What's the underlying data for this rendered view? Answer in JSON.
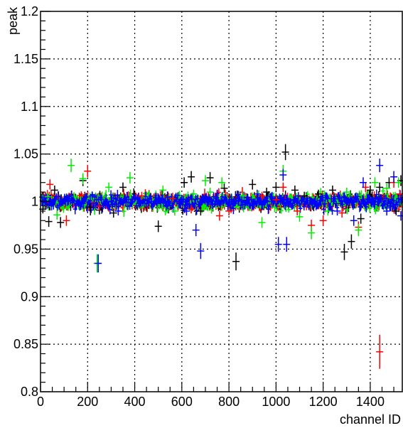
{
  "chart_data": {
    "type": "scatter",
    "xlabel": "channel ID",
    "ylabel": "peak",
    "xlim": [
      0,
      1536
    ],
    "ylim": [
      0.8,
      1.2
    ],
    "x_ticks": [
      0,
      200,
      400,
      600,
      800,
      1000,
      1200,
      1400
    ],
    "y_ticks": [
      0.8,
      0.85,
      0.9,
      0.95,
      1,
      1.05,
      1.1,
      1.15,
      1.2
    ],
    "x_tick_labels": [
      "0",
      "200",
      "400",
      "600",
      "800",
      "1000",
      "1200",
      "1400"
    ],
    "y_tick_labels": [
      "0.8",
      "0.85",
      "0.9",
      "0.95",
      "1",
      "1.05",
      "1.1",
      "1.15",
      "1.2"
    ],
    "grid": true,
    "marker": "cross-with-error-bars",
    "series": [
      {
        "color": "#000000",
        "x": [
          10,
          35,
          60,
          85,
          180,
          210,
          250,
          310,
          350,
          500,
          610,
          640,
          680,
          720,
          780,
          830,
          900,
          960,
          1000,
          1040,
          1080,
          1120,
          1180,
          1240,
          1290,
          1320,
          1360,
          1400,
          1440,
          1480,
          1510,
          1530
        ],
        "y": [
          0.992,
          0.979,
          1.012,
          0.978,
          1.022,
          0.994,
          0.991,
          0.988,
          1.015,
          0.974,
          1.02,
          1.026,
          0.99,
          1.025,
          1.014,
          0.937,
          1.018,
          1.01,
          1.015,
          1.052,
          1.012,
          1.006,
          1.008,
          1.012,
          0.947,
          0.958,
          0.982,
          1.012,
          1.015,
          1.02,
          0.99,
          1.022
        ]
      },
      {
        "color": "#ff0000",
        "x": [
          40,
          110,
          200,
          250,
          430,
          560,
          640,
          760,
          800,
          940,
          1000,
          1030,
          1090,
          1150,
          1200,
          1280,
          1350,
          1380,
          1440,
          1500,
          1525
        ],
        "y": [
          1.018,
          0.98,
          1.032,
          0.995,
          1.006,
          1.003,
          0.992,
          0.985,
          0.99,
          1.006,
          1.002,
          1.015,
          0.99,
          0.975,
          0.98,
          0.988,
          0.973,
          1.015,
          0.842,
          1.02,
          1.008
        ]
      },
      {
        "color": "#00ee00",
        "x": [
          30,
          70,
          130,
          180,
          240,
          290,
          380,
          520,
          570,
          650,
          700,
          720,
          770,
          860,
          940,
          1030,
          1100,
          1150,
          1220,
          1300,
          1350,
          1420,
          1470,
          1520
        ],
        "y": [
          1.005,
          0.986,
          1.038,
          1.024,
          0.935,
          1.015,
          1.025,
          1.012,
          0.99,
          1.008,
          1.022,
          1.01,
          1.02,
          1.006,
          0.978,
          1.032,
          0.984,
          0.967,
          0.99,
          1.01,
          0.97,
          1.02,
          1.014,
          1.02
        ]
      },
      {
        "color": "#0000ff",
        "x": [
          15,
          100,
          160,
          220,
          245,
          300,
          330,
          400,
          470,
          540,
          600,
          620,
          660,
          680,
          700,
          750,
          820,
          880,
          920,
          980,
          1010,
          1030,
          1045,
          1080,
          1120,
          1170,
          1210,
          1260,
          1300,
          1330,
          1370,
          1410,
          1440,
          1470,
          1500,
          1530
        ],
        "y": [
          1.004,
          1.002,
          0.998,
          1.006,
          0.935,
          1.0,
          0.99,
          1.004,
          1.0,
          0.996,
          1.002,
          0.99,
          0.97,
          0.948,
          1.004,
          0.998,
          1.0,
          1.004,
          1.008,
          1.0,
          0.955,
          1.028,
          0.955,
          1.002,
          1.0,
          0.995,
          1.004,
          0.99,
          1.0,
          0.98,
          1.02,
          1.0,
          1.038,
          0.99,
          1.026,
          0.985
        ]
      }
    ]
  }
}
